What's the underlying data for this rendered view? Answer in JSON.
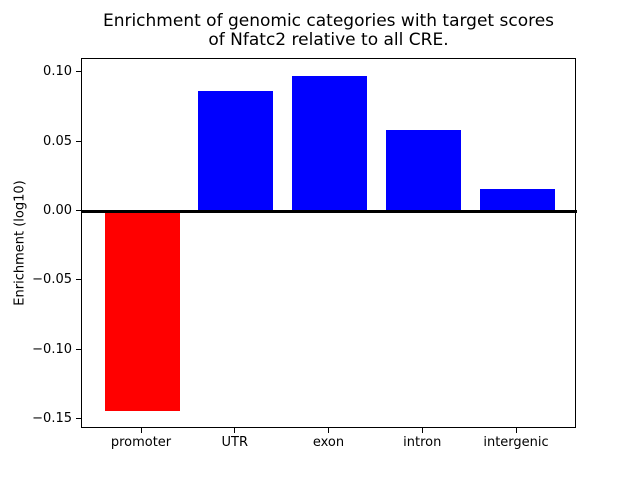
{
  "figure": {
    "title_line1": "Enrichment of genomic categories with target scores",
    "title_line2": "of Nfatc2 relative to all CRE.",
    "ylabel": "Enrichment (log10)"
  },
  "colors": {
    "positive_bar": "#0000ff",
    "negative_bar": "#ff0000",
    "axis": "#000000",
    "background": "#ffffff"
  },
  "chart_data": {
    "type": "bar",
    "title": "Enrichment of genomic categories with target scores\nof Nfatc2 relative to all CRE.",
    "xlabel": "",
    "ylabel": "Enrichment (log10)",
    "categories": [
      "promoter",
      "UTR",
      "exon",
      "intron",
      "intergenic"
    ],
    "values": [
      -0.144,
      0.087,
      0.098,
      0.059,
      0.016
    ],
    "bar_colors": [
      "#ff0000",
      "#0000ff",
      "#0000ff",
      "#0000ff",
      "#0000ff"
    ],
    "ylim": [
      -0.157,
      0.11
    ],
    "xlim": [
      -0.64,
      4.64
    ],
    "bar_width_fraction": 0.8,
    "yticks": [
      {
        "value": 0.1,
        "label": "0.10"
      },
      {
        "value": 0.05,
        "label": "0.05"
      },
      {
        "value": 0.0,
        "label": "0.00"
      },
      {
        "value": -0.05,
        "label": "−0.05"
      },
      {
        "value": -0.1,
        "label": "−0.10"
      },
      {
        "value": -0.15,
        "label": "−0.15"
      }
    ],
    "zero_line": true,
    "grid": false,
    "legend_position": "none"
  }
}
